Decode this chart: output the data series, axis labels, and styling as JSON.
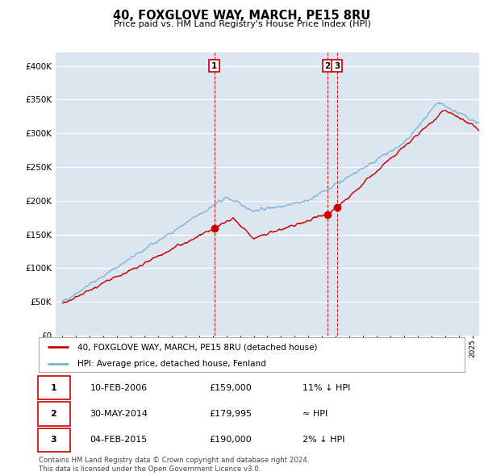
{
  "title": "40, FOXGLOVE WAY, MARCH, PE15 8RU",
  "subtitle": "Price paid vs. HM Land Registry's House Price Index (HPI)",
  "red_label": "40, FOXGLOVE WAY, MARCH, PE15 8RU (detached house)",
  "blue_label": "HPI: Average price, detached house, Fenland",
  "transactions": [
    {
      "num": "1",
      "date": "10-FEB-2006",
      "price": "£159,000",
      "rel": "11% ↓ HPI",
      "year": 2006.11,
      "val": 159000
    },
    {
      "num": "2",
      "date": "30-MAY-2014",
      "price": "£179,995",
      "rel": "≈ HPI",
      "year": 2014.41,
      "val": 179995
    },
    {
      "num": "3",
      "date": "04-FEB-2015",
      "price": "£190,000",
      "rel": "2% ↓ HPI",
      "year": 2015.09,
      "val": 190000
    }
  ],
  "footnote": "Contains HM Land Registry data © Crown copyright and database right 2024.\nThis data is licensed under the Open Government Licence v3.0.",
  "ylim": [
    0,
    420000
  ],
  "yticks": [
    0,
    50000,
    100000,
    150000,
    200000,
    250000,
    300000,
    350000,
    400000
  ],
  "xlim_start": 1995.0,
  "xlim_end": 2025.5,
  "bg_color": "#ffffff",
  "plot_bg": "#dce6f0",
  "red_color": "#cc0000",
  "blue_color": "#7bafd4",
  "vline_color": "#cc0000",
  "grid_color": "#ffffff",
  "num_points": 1000
}
